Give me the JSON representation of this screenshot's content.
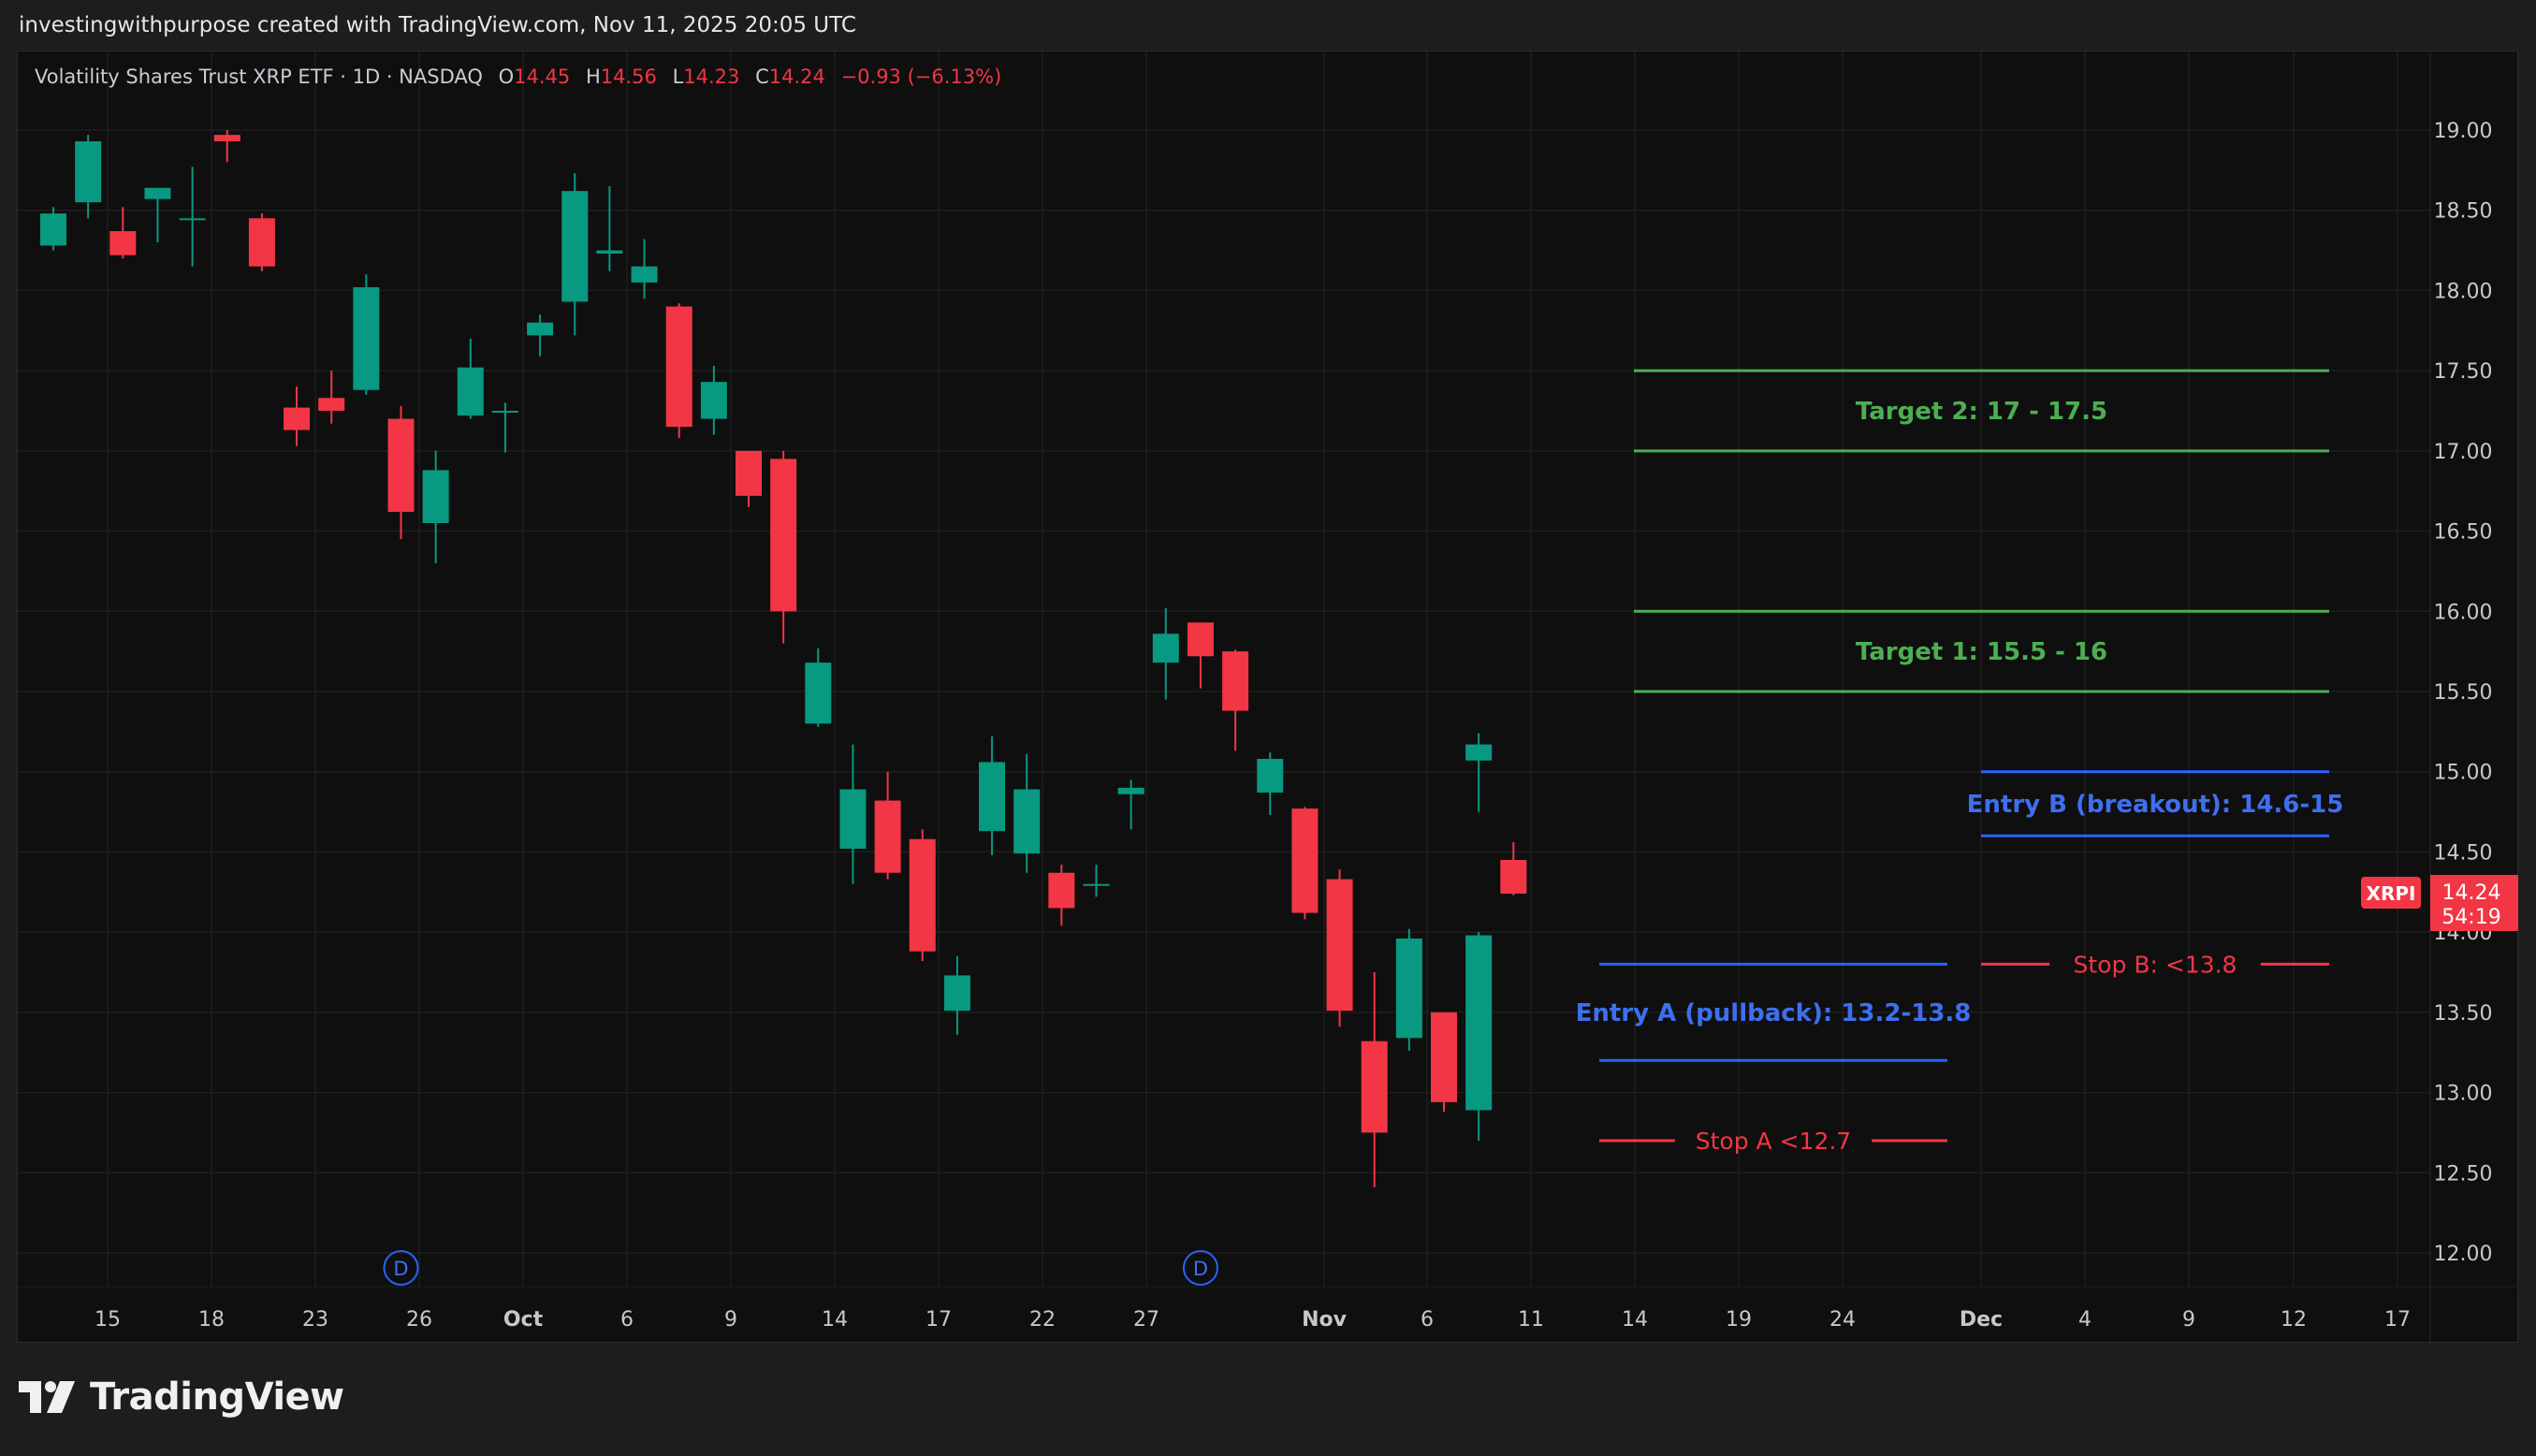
{
  "caption": "investingwithpurpose created with TradingView.com, Nov 11, 2025 20:05 UTC",
  "brand": "TradingView",
  "colors": {
    "up": "#089981",
    "down": "#f23645",
    "target": "#4caf50",
    "entry": "#2962ff",
    "entry_text": "#3d6ff0",
    "stop": "#f23645"
  },
  "legend": {
    "symbol_name": "Volatility Shares Trust XRP ETF · 1D · NASDAQ",
    "o_label": "O",
    "o_value": "14.45",
    "h_label": "H",
    "h_value": "14.56",
    "l_label": "L",
    "l_value": "14.23",
    "c_label": "C",
    "c_value": "14.24",
    "change": "−0.93 (−6.13%)"
  },
  "price_badge": {
    "ticker": "XRPI",
    "price": "14.24",
    "countdown": "54:19"
  },
  "chart_data": {
    "type": "candlestick",
    "ylim": [
      11.6,
      19.15
    ],
    "y_ticks": [
      "12.00",
      "12.50",
      "13.00",
      "13.50",
      "14.00",
      "14.50",
      "15.00",
      "15.50",
      "16.00",
      "16.50",
      "17.00",
      "17.50",
      "18.00",
      "18.50",
      "19.00"
    ],
    "x_ticks": [
      "15",
      "18",
      "23",
      "26",
      "Oct",
      "6",
      "9",
      "14",
      "17",
      "22",
      "27",
      "Nov",
      "6",
      "11",
      "14",
      "19",
      "24",
      "Dec",
      "4",
      "9",
      "12",
      "17"
    ],
    "dividend_markers": [
      {
        "label": "D",
        "date": "Sep 26"
      },
      {
        "label": "D",
        "date": "Oct 29"
      }
    ],
    "candles": [
      {
        "date": "Sep 12",
        "o": 18.28,
        "h": 18.52,
        "l": 18.25,
        "c": 18.48
      },
      {
        "date": "Sep 15",
        "o": 18.55,
        "h": 18.97,
        "l": 18.45,
        "c": 18.93
      },
      {
        "date": "Sep 16",
        "o": 18.37,
        "h": 18.52,
        "l": 18.2,
        "c": 18.22
      },
      {
        "date": "Sep 17",
        "o": 18.57,
        "h": 18.63,
        "l": 18.3,
        "c": 18.64
      },
      {
        "date": "Sep 18",
        "o": 18.45,
        "h": 18.77,
        "l": 18.15,
        "c": 18.45
      },
      {
        "date": "Sep 19",
        "o": 18.97,
        "h": 19.0,
        "l": 18.8,
        "c": 18.93
      },
      {
        "date": "Sep 22",
        "o": 18.45,
        "h": 18.48,
        "l": 18.12,
        "c": 18.15
      },
      {
        "date": "Sep 23",
        "o": 17.27,
        "h": 17.4,
        "l": 17.03,
        "c": 17.13
      },
      {
        "date": "Sep 24",
        "o": 17.33,
        "h": 17.5,
        "l": 17.17,
        "c": 17.25
      },
      {
        "date": "Sep 25",
        "o": 17.38,
        "h": 18.1,
        "l": 17.35,
        "c": 18.02
      },
      {
        "date": "Sep 26",
        "o": 17.2,
        "h": 17.28,
        "l": 16.45,
        "c": 16.62
      },
      {
        "date": "Sep 29",
        "o": 16.55,
        "h": 17.0,
        "l": 16.3,
        "c": 16.88
      },
      {
        "date": "Sep 30",
        "o": 17.22,
        "h": 17.7,
        "l": 17.2,
        "c": 17.52
      },
      {
        "date": "Oct 1",
        "o": 17.24,
        "h": 17.3,
        "l": 16.99,
        "c": 17.25
      },
      {
        "date": "Oct 2",
        "o": 17.72,
        "h": 17.85,
        "l": 17.59,
        "c": 17.8
      },
      {
        "date": "Oct 3",
        "o": 17.93,
        "h": 18.73,
        "l": 17.72,
        "c": 18.62
      },
      {
        "date": "Oct 6",
        "o": 18.23,
        "h": 18.65,
        "l": 18.12,
        "c": 18.25
      },
      {
        "date": "Oct 7",
        "o": 18.05,
        "h": 18.32,
        "l": 17.95,
        "c": 18.15
      },
      {
        "date": "Oct 8",
        "o": 17.9,
        "h": 17.92,
        "l": 17.08,
        "c": 17.15
      },
      {
        "date": "Oct 9",
        "o": 17.2,
        "h": 17.53,
        "l": 17.1,
        "c": 17.43
      },
      {
        "date": "Oct 10",
        "o": 17.0,
        "h": 16.98,
        "l": 16.65,
        "c": 16.72
      },
      {
        "date": "Oct 13",
        "o": 16.95,
        "h": 17.0,
        "l": 15.8,
        "c": 16.0
      },
      {
        "date": "Oct 14",
        "o": 15.3,
        "h": 15.77,
        "l": 15.28,
        "c": 15.68
      },
      {
        "date": "Oct 15",
        "o": 14.52,
        "h": 15.17,
        "l": 14.3,
        "c": 14.89
      },
      {
        "date": "Oct 16",
        "o": 14.82,
        "h": 15.0,
        "l": 14.33,
        "c": 14.37
      },
      {
        "date": "Oct 17",
        "o": 14.58,
        "h": 14.64,
        "l": 13.82,
        "c": 13.88
      },
      {
        "date": "Oct 20",
        "o": 13.51,
        "h": 13.85,
        "l": 13.36,
        "c": 13.73
      },
      {
        "date": "Oct 21",
        "o": 14.63,
        "h": 15.22,
        "l": 14.48,
        "c": 15.06
      },
      {
        "date": "Oct 22",
        "o": 14.49,
        "h": 15.11,
        "l": 14.37,
        "c": 14.89
      },
      {
        "date": "Oct 23",
        "o": 14.37,
        "h": 14.42,
        "l": 14.04,
        "c": 14.15
      },
      {
        "date": "Oct 24",
        "o": 14.3,
        "h": 14.42,
        "l": 14.22,
        "c": 14.3
      },
      {
        "date": "Oct 27",
        "o": 14.86,
        "h": 14.95,
        "l": 14.64,
        "c": 14.9
      },
      {
        "date": "Oct 28",
        "o": 15.68,
        "h": 16.02,
        "l": 15.45,
        "c": 15.86
      },
      {
        "date": "Oct 29",
        "o": 15.93,
        "h": 15.92,
        "l": 15.52,
        "c": 15.72
      },
      {
        "date": "Oct 30",
        "o": 15.75,
        "h": 15.76,
        "l": 15.13,
        "c": 15.38
      },
      {
        "date": "Oct 31",
        "o": 14.87,
        "h": 15.12,
        "l": 14.73,
        "c": 15.08
      },
      {
        "date": "Nov 3",
        "o": 14.77,
        "h": 14.78,
        "l": 14.08,
        "c": 14.12
      },
      {
        "date": "Nov 4",
        "o": 14.33,
        "h": 14.39,
        "l": 13.41,
        "c": 13.51
      },
      {
        "date": "Nov 5",
        "o": 13.32,
        "h": 13.75,
        "l": 12.41,
        "c": 12.75
      },
      {
        "date": "Nov 6",
        "o": 13.34,
        "h": 14.02,
        "l": 13.26,
        "c": 13.96
      },
      {
        "date": "Nov 7",
        "o": 13.5,
        "h": 13.49,
        "l": 12.88,
        "c": 12.94
      },
      {
        "date": "Nov 8",
        "o": 12.89,
        "h": 14.0,
        "l": 12.7,
        "c": 13.98
      },
      {
        "date": "Nov 10",
        "o": 15.07,
        "h": 15.24,
        "l": 14.75,
        "c": 15.17
      },
      {
        "date": "Nov 11",
        "o": 14.45,
        "h": 14.56,
        "l": 14.23,
        "c": 14.24
      }
    ],
    "levels": [
      {
        "kind": "target",
        "label": "Target 2: 17 - 17.5",
        "top": 17.5,
        "bottom": 17.0
      },
      {
        "kind": "target",
        "label": "Target 1: 15.5 - 16",
        "top": 16.0,
        "bottom": 15.5
      },
      {
        "kind": "entry",
        "label": "Entry B (breakout): 14.6-15",
        "top": 15.0,
        "bottom": 14.6
      },
      {
        "kind": "entry",
        "label": "Entry A (pullback): 13.2-13.8",
        "top": 13.8,
        "bottom": 13.2
      },
      {
        "kind": "stop",
        "label": "Stop B: <13.8",
        "value": 13.8
      },
      {
        "kind": "stop",
        "label": "Stop A <12.7",
        "value": 12.7
      }
    ]
  }
}
